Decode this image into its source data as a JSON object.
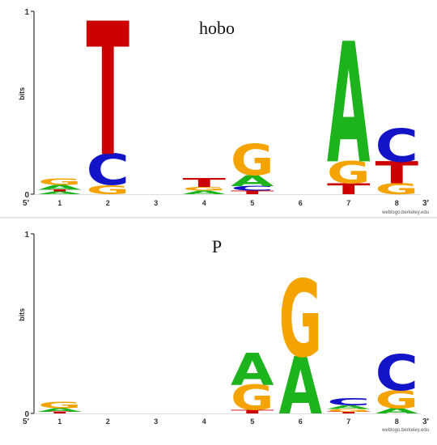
{
  "chart_data": [
    {
      "type": "sequence-logo",
      "title": "hobo",
      "ylabel": "bits",
      "ylim": [
        0,
        1
      ],
      "yticks": [
        "0",
        "1"
      ],
      "five_prime": "5′",
      "three_prime": "3′",
      "credit": "weblogo.berkeley.edu",
      "positions": [
        {
          "label": "1",
          "stack": [
            {
              "base": "A",
              "bits": 0.015
            },
            {
              "base": "T",
              "bits": 0.01
            },
            {
              "base": "A",
              "bits": 0.025
            },
            {
              "base": "G",
              "bits": 0.035
            }
          ]
        },
        {
          "label": "2",
          "stack": [
            {
              "base": "G",
              "bits": 0.05
            },
            {
              "base": "C",
              "bits": 0.17
            },
            {
              "base": "T",
              "bits": 0.73
            }
          ]
        },
        {
          "label": "3",
          "stack": []
        },
        {
          "label": "4",
          "stack": [
            {
              "base": "A",
              "bits": 0.02
            },
            {
              "base": "G",
              "bits": 0.02
            },
            {
              "base": "T",
              "bits": 0.05
            }
          ]
        },
        {
          "label": "5",
          "stack": [
            {
              "base": "T",
              "bits": 0.02
            },
            {
              "base": "C",
              "bits": 0.025
            },
            {
              "base": "A",
              "bits": 0.06
            },
            {
              "base": "G",
              "bits": 0.17
            }
          ]
        },
        {
          "label": "6",
          "stack": []
        },
        {
          "label": "7",
          "stack": [
            {
              "base": "T",
              "bits": 0.06
            },
            {
              "base": "G",
              "bits": 0.12
            },
            {
              "base": "A",
              "bits": 0.66
            }
          ]
        },
        {
          "label": "8",
          "stack": [
            {
              "base": "G",
              "bits": 0.06
            },
            {
              "base": "T",
              "bits": 0.12
            },
            {
              "base": "C",
              "bits": 0.18
            }
          ]
        }
      ]
    },
    {
      "type": "sequence-logo",
      "title": "P",
      "ylabel": "bits",
      "ylim": [
        0,
        1
      ],
      "yticks": [
        "0",
        "1"
      ],
      "five_prime": "5′",
      "three_prime": "3′",
      "credit": "weblogo.berkeley.edu",
      "positions": [
        {
          "label": "1",
          "stack": [
            {
              "base": "T",
              "bits": 0.01
            },
            {
              "base": "A",
              "bits": 0.02
            },
            {
              "base": "G",
              "bits": 0.035
            }
          ]
        },
        {
          "label": "2",
          "stack": []
        },
        {
          "label": "3",
          "stack": []
        },
        {
          "label": "4",
          "stack": []
        },
        {
          "label": "5",
          "stack": [
            {
              "base": "T",
              "bits": 0.02
            },
            {
              "base": "G",
              "bits": 0.14
            },
            {
              "base": "A",
              "bits": 0.18
            }
          ]
        },
        {
          "label": "6",
          "stack": [
            {
              "base": "A",
              "bits": 0.32
            },
            {
              "base": "G",
              "bits": 0.43
            }
          ]
        },
        {
          "label": "7",
          "stack": [
            {
              "base": "T",
              "bits": 0.01
            },
            {
              "base": "G",
              "bits": 0.015
            },
            {
              "base": "A",
              "bits": 0.02
            },
            {
              "base": "C",
              "bits": 0.04
            }
          ]
        },
        {
          "label": "8",
          "stack": [
            {
              "base": "A",
              "bits": 0.03
            },
            {
              "base": "G",
              "bits": 0.1
            },
            {
              "base": "C",
              "bits": 0.2
            }
          ]
        }
      ]
    }
  ],
  "colors": {
    "A": "#1db31d",
    "C": "#1313c8",
    "G": "#f5a300",
    "T": "#cc0000"
  }
}
